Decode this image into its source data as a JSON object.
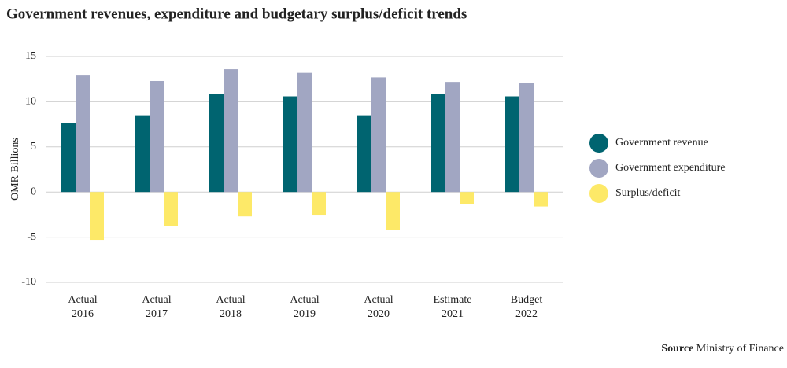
{
  "chart_data": {
    "type": "bar",
    "title": "Government revenues, expenditure and budgetary surplus/deficit trends",
    "y_label": "OMR Billions",
    "categories": [
      [
        "Actual",
        "2016"
      ],
      [
        "Actual",
        "2017"
      ],
      [
        "Actual",
        "2018"
      ],
      [
        "Actual",
        "2019"
      ],
      [
        "Actual",
        "2020"
      ],
      [
        "Estimate",
        "2021"
      ],
      [
        "Budget",
        "2022"
      ]
    ],
    "series": [
      {
        "name": "Government revenue",
        "color": "#006470",
        "values": [
          7.6,
          8.5,
          10.9,
          10.6,
          8.5,
          10.9,
          10.6
        ]
      },
      {
        "name": "Government expenditure",
        "color": "#a1a6c2",
        "values": [
          12.9,
          12.3,
          13.6,
          13.2,
          12.7,
          12.2,
          12.1
        ]
      },
      {
        "name": "Surplus/deficit",
        "color": "#fde968",
        "values": [
          -5.3,
          -3.8,
          -2.7,
          -2.6,
          -4.2,
          -1.3,
          -1.6
        ]
      }
    ],
    "ylim": [
      -10,
      15
    ],
    "yticks": [
      -10,
      -5,
      0,
      5,
      10,
      15
    ],
    "grid": true,
    "legend": "right",
    "source": {
      "label": "Source",
      "text": "Ministry of Finance"
    }
  }
}
